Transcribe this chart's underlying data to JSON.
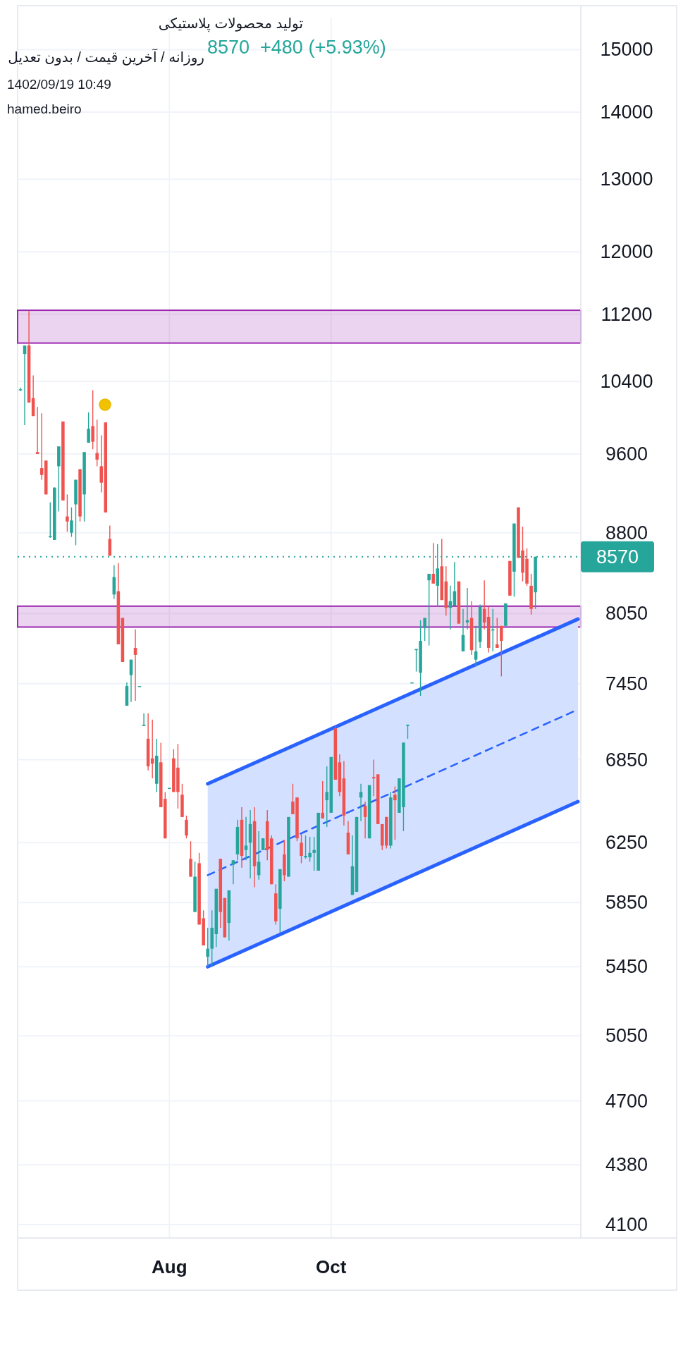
{
  "chart_data": {
    "type": "candlestick",
    "title": "تولید محصولات پلاستیکی",
    "subtitle": "روزانه / آخرین قیمت / بدون تعدیل",
    "annotations": [
      "8570  +480 (+5.93%)",
      "1402/09/19 10:49",
      "hamed.beiro"
    ],
    "categories": [
      null,
      null,
      null,
      null,
      null,
      null,
      null,
      null,
      null,
      null,
      null,
      null,
      null,
      null,
      null,
      null,
      null,
      null,
      null,
      null,
      null,
      null,
      null,
      null,
      null,
      null,
      null,
      null,
      null,
      null,
      null,
      null,
      null,
      null,
      null,
      "Aug",
      null,
      null,
      null,
      null,
      null,
      null,
      null,
      null,
      null,
      null,
      null,
      null,
      null,
      null,
      null,
      null,
      null,
      null,
      null,
      null,
      null,
      null,
      null,
      null,
      null,
      null,
      null,
      null,
      null,
      null,
      null,
      null,
      null,
      null,
      null,
      null,
      null,
      "Oct",
      null,
      null,
      null,
      null,
      null,
      null,
      null,
      null,
      null,
      null,
      null,
      null,
      null,
      null,
      null,
      null,
      null,
      null,
      null,
      null,
      null,
      null,
      null,
      null,
      null,
      null,
      null,
      null,
      null,
      null,
      null,
      null,
      null,
      null,
      null,
      null,
      null,
      null,
      null,
      null,
      null,
      null,
      null,
      null,
      null,
      null,
      null,
      null,
      null,
      null,
      null,
      null,
      null,
      null,
      null,
      null,
      null,
      null
    ],
    "ohlc": [
      [
        10310,
        10330,
        10290,
        10310
      ],
      [
        10720,
        10820,
        9910,
        10820
      ],
      [
        10820,
        11240,
        10160,
        10160
      ],
      [
        10210,
        10470,
        10010,
        10010
      ],
      [
        9620,
        10110,
        9600,
        9600
      ],
      [
        9450,
        10040,
        9330,
        9380
      ],
      [
        9530,
        9530,
        9180,
        9180
      ],
      [
        8760,
        9100,
        8750,
        8770
      ],
      [
        8730,
        9250,
        8730,
        9250
      ],
      [
        9470,
        9680,
        9010,
        9680
      ],
      [
        9950,
        9950,
        9120,
        9120
      ],
      [
        8960,
        9180,
        8810,
        8910
      ],
      [
        8800,
        9050,
        8760,
        8920
      ],
      [
        9080,
        9330,
        8680,
        9330
      ],
      [
        9440,
        9440,
        8910,
        8960
      ],
      [
        9180,
        9620,
        8910,
        9620
      ],
      [
        9720,
        10050,
        9720,
        9870
      ],
      [
        9900,
        10300,
        9650,
        9730
      ],
      [
        9610,
        9970,
        9470,
        9540
      ],
      [
        9470,
        9800,
        9200,
        9300
      ],
      [
        9940,
        9940,
        9000,
        9000
      ],
      [
        8740,
        8870,
        8580,
        8580
      ],
      [
        8220,
        8490,
        8180,
        8380
      ],
      [
        8250,
        8510,
        7780,
        7780
      ],
      [
        8010,
        8010,
        7630,
        7630
      ],
      [
        7270,
        7460,
        7270,
        7430
      ],
      [
        7520,
        7650,
        7300,
        7650
      ],
      [
        7750,
        7910,
        7310,
        7690
      ],
      [
        7430,
        7430,
        7430,
        7430
      ],
      [
        7110,
        7210,
        7110,
        7120
      ],
      [
        7010,
        7210,
        6770,
        6800
      ],
      [
        6860,
        7160,
        6710,
        6820
      ],
      [
        6670,
        7010,
        6610,
        6880
      ],
      [
        6830,
        6980,
        6500,
        6500
      ],
      [
        6560,
        6610,
        6280,
        6280
      ],
      [
        6640,
        6640,
        6640,
        6640
      ],
      [
        6860,
        6930,
        6610,
        6610
      ],
      [
        6790,
        6970,
        6490,
        6610
      ],
      [
        6590,
        6670,
        6430,
        6430
      ],
      [
        6410,
        6440,
        6280,
        6300
      ],
      [
        6140,
        6260,
        6020,
        6020
      ],
      [
        5790,
        6120,
        5790,
        6020
      ],
      [
        6110,
        6180,
        5710,
        5710
      ],
      [
        5750,
        5800,
        5580,
        5580
      ],
      [
        5510,
        5690,
        5450,
        5560
      ],
      [
        5560,
        5800,
        5450,
        5690
      ],
      [
        5650,
        5940,
        5570,
        5940
      ],
      [
        6140,
        6140,
        5690,
        5790
      ],
      [
        5880,
        5880,
        5630,
        5630
      ],
      [
        5720,
        5930,
        5610,
        5930
      ],
      [
        6100,
        6130,
        5970,
        6130
      ],
      [
        6170,
        6410,
        6130,
        6360
      ],
      [
        6410,
        6500,
        6080,
        6160
      ],
      [
        6200,
        6430,
        6130,
        6230
      ],
      [
        6250,
        6480,
        6010,
        6380
      ],
      [
        6400,
        6500,
        5950,
        6090
      ],
      [
        6030,
        6330,
        6000,
        6120
      ],
      [
        6200,
        6280,
        6200,
        6280
      ],
      [
        6400,
        6480,
        6130,
        6200
      ],
      [
        6280,
        6300,
        5970,
        5970
      ],
      [
        5910,
        5970,
        5710,
        5730
      ],
      [
        5810,
        6070,
        5660,
        6070
      ],
      [
        6170,
        6270,
        5990,
        6030
      ],
      [
        6020,
        6430,
        6020,
        6430
      ],
      [
        6540,
        6670,
        6450,
        6450
      ],
      [
        6570,
        6570,
        6260,
        6280
      ],
      [
        6250,
        6310,
        6110,
        6160
      ],
      [
        6150,
        6300,
        6140,
        6160
      ],
      [
        6150,
        6290,
        6120,
        6180
      ],
      [
        6180,
        6290,
        6060,
        6200
      ],
      [
        6060,
        6460,
        6060,
        6460
      ],
      [
        6460,
        6690,
        6420,
        6420
      ],
      [
        6550,
        6800,
        6360,
        6610
      ],
      [
        6460,
        6870,
        6460,
        6870
      ],
      [
        7090,
        7120,
        6700,
        6700
      ],
      [
        6830,
        6890,
        6580,
        6610
      ],
      [
        6710,
        6840,
        6370,
        6440
      ],
      [
        6320,
        6400,
        6170,
        6170
      ],
      [
        5900,
        6300,
        5900,
        6090
      ],
      [
        5920,
        6430,
        5920,
        6430
      ],
      [
        6570,
        6670,
        6400,
        6610
      ],
      [
        6510,
        6540,
        6280,
        6430
      ],
      [
        6280,
        6660,
        6280,
        6660
      ],
      [
        6720,
        6850,
        6580,
        6710
      ],
      [
        6740,
        6740,
        6380,
        6380
      ],
      [
        6380,
        6380,
        6200,
        6230
      ],
      [
        6430,
        6430,
        6210,
        6230
      ],
      [
        6230,
        6610,
        6210,
        6570
      ],
      [
        6590,
        6650,
        6270,
        6550
      ],
      [
        6460,
        6710,
        6460,
        6710
      ],
      [
        6500,
        6980,
        6330,
        6980
      ],
      [
        7110,
        7120,
        7010,
        7120
      ],
      [
        7460,
        7460,
        7460,
        7460
      ],
      [
        7730,
        7740,
        7550,
        7740
      ],
      [
        7540,
        7990,
        7350,
        7810
      ],
      [
        7920,
        8010,
        7810,
        8010
      ],
      [
        8350,
        8410,
        7770,
        8410
      ],
      [
        8410,
        8700,
        8320,
        8320
      ],
      [
        8300,
        8690,
        8110,
        8460
      ],
      [
        8480,
        8740,
        8170,
        8170
      ],
      [
        8340,
        8480,
        8030,
        8100
      ],
      [
        8100,
        8300,
        7910,
        8160
      ],
      [
        8120,
        8520,
        8120,
        8250
      ],
      [
        8340,
        8340,
        7960,
        7960
      ],
      [
        7720,
        8090,
        7720,
        7860
      ],
      [
        7970,
        8280,
        7910,
        7990
      ],
      [
        8010,
        8160,
        7690,
        7730
      ],
      [
        7650,
        7940,
        7590,
        7720
      ],
      [
        7800,
        8130,
        7750,
        8110
      ],
      [
        8090,
        8350,
        7910,
        7970
      ],
      [
        8020,
        8110,
        7710,
        7750
      ],
      [
        7900,
        8090,
        7720,
        7910
      ],
      [
        7780,
        8010,
        7750,
        7750
      ],
      [
        7940,
        7940,
        7510,
        7810
      ],
      [
        7940,
        8140,
        7940,
        8140
      ],
      [
        8530,
        8530,
        8210,
        8210
      ],
      [
        8430,
        8890,
        8200,
        8890
      ],
      [
        9050,
        9050,
        8560,
        8560
      ],
      [
        8630,
        8860,
        8340,
        8420
      ],
      [
        8550,
        8650,
        8300,
        8320
      ],
      [
        8300,
        8410,
        8040,
        8090
      ],
      [
        8240,
        8570,
        8090,
        8570
      ],
      null,
      null,
      null,
      null,
      null,
      null,
      null,
      null,
      null,
      null
    ],
    "colors": [
      "#26a69a",
      "#26a69a",
      "#ef5350",
      "#ef5350",
      "#ef5350",
      "#ef5350",
      "#ef5350",
      "#26a69a",
      "#26a69a",
      "#26a69a",
      "#ef5350",
      "#ef5350",
      "#26a69a",
      "#26a69a",
      "#ef5350",
      "#26a69a",
      "#26a69a",
      "#ef5350",
      "#ef5350",
      "#ef5350",
      "#ef5350",
      "#ef5350",
      "#26a69a",
      "#ef5350",
      "#ef5350",
      "#26a69a",
      "#26a69a",
      "#ef5350",
      "#26a69a",
      "#26a69a",
      "#ef5350",
      "#ef5350",
      "#26a69a",
      "#ef5350",
      "#ef5350",
      "#26a69a",
      "#ef5350",
      "#ef5350",
      "#ef5350",
      "#ef5350",
      "#ef5350",
      "#26a69a",
      "#ef5350",
      "#ef5350",
      "#26a69a",
      "#26a69a",
      "#26a69a",
      "#ef5350",
      "#ef5350",
      "#26a69a",
      "#26a69a",
      "#26a69a",
      "#ef5350",
      "#26a69a",
      "#26a69a",
      "#ef5350",
      "#26a69a",
      "#26a69a",
      "#ef5350",
      "#ef5350",
      "#ef5350",
      "#26a69a",
      "#ef5350",
      "#26a69a",
      "#ef5350",
      "#ef5350",
      "#ef5350",
      "#26a69a",
      "#26a69a",
      "#26a69a",
      "#26a69a",
      "#ef5350",
      "#26a69a",
      "#26a69a",
      "#ef5350",
      "#ef5350",
      "#ef5350",
      "#ef5350",
      "#26a69a",
      "#26a69a",
      "#26a69a",
      "#ef5350",
      "#26a69a",
      "#ef5350",
      "#ef5350",
      "#ef5350",
      "#ef5350",
      "#26a69a",
      "#ef5350",
      "#26a69a",
      "#26a69a",
      "#26a69a",
      "#26a69a",
      "#26a69a",
      "#26a69a",
      "#26a69a",
      "#26a69a",
      "#ef5350",
      "#26a69a",
      "#ef5350",
      "#ef5350",
      "#26a69a",
      "#26a69a",
      "#ef5350",
      "#26a69a",
      "#26a69a",
      "#ef5350",
      "#26a69a",
      "#26a69a",
      "#ef5350",
      "#ef5350",
      "#26a69a",
      "#ef5350",
      "#ef5350",
      "#26a69a",
      "#ef5350",
      "#26a69a",
      "#ef5350",
      "#ef5350",
      "#ef5350",
      "#ef5350",
      "#26a69a",
      null,
      null,
      null,
      null,
      null,
      null,
      null,
      null,
      null,
      null
    ],
    "series": [
      {
        "type": "line",
        "color": "#2962ff",
        "line_style": "solid",
        "values": [
          null,
          null,
          null,
          null,
          null,
          null,
          null,
          null,
          null,
          null,
          null,
          null,
          null,
          null,
          null,
          null,
          null,
          null,
          null,
          null,
          null,
          null,
          null,
          null,
          null,
          null,
          null,
          null,
          null,
          null,
          null,
          null,
          null,
          null,
          null,
          null,
          null,
          null,
          null,
          null,
          null,
          null,
          null,
          null,
          6670,
          null,
          null,
          null,
          null,
          null,
          null,
          null,
          null,
          null,
          null,
          null,
          null,
          null,
          null,
          null,
          null,
          null,
          null,
          null,
          null,
          null,
          null,
          null,
          null,
          null,
          null,
          null,
          null,
          null,
          null,
          null,
          null,
          null,
          null,
          null,
          null,
          null,
          null,
          null,
          null,
          null,
          null,
          null,
          null,
          null,
          null,
          null,
          null,
          null,
          null,
          null,
          null,
          null,
          null,
          null,
          null,
          null,
          null,
          null,
          null,
          null,
          null,
          null,
          null,
          null,
          null,
          null,
          null,
          null,
          null,
          null,
          null,
          null,
          null,
          null,
          null,
          null,
          null,
          null,
          null,
          null,
          null,
          null,
          null,
          null,
          null,
          8000
        ]
      },
      {
        "type": "line",
        "color": "#2962ff",
        "line_style": "solid",
        "values": [
          null,
          null,
          null,
          null,
          null,
          null,
          null,
          null,
          null,
          null,
          null,
          null,
          null,
          null,
          null,
          null,
          null,
          null,
          null,
          null,
          null,
          null,
          null,
          null,
          null,
          null,
          null,
          null,
          null,
          null,
          null,
          null,
          null,
          null,
          null,
          null,
          null,
          null,
          null,
          null,
          null,
          null,
          null,
          null,
          5450,
          null,
          null,
          null,
          null,
          null,
          null,
          null,
          null,
          null,
          null,
          null,
          null,
          null,
          null,
          null,
          null,
          null,
          null,
          null,
          null,
          null,
          null,
          null,
          null,
          null,
          null,
          null,
          null,
          null,
          null,
          null,
          null,
          null,
          null,
          null,
          null,
          null,
          null,
          null,
          null,
          null,
          null,
          null,
          null,
          null,
          null,
          null,
          null,
          null,
          null,
          null,
          null,
          null,
          null,
          null,
          null,
          null,
          null,
          null,
          null,
          null,
          null,
          null,
          null,
          null,
          null,
          null,
          null,
          null,
          null,
          null,
          null,
          null,
          null,
          null,
          null,
          null,
          null,
          null,
          null,
          null,
          null,
          null,
          null,
          null,
          null,
          6540
        ]
      },
      {
        "type": "line",
        "color": "#2962ff",
        "line_style": "dashed",
        "values": [
          null,
          null,
          null,
          null,
          null,
          null,
          null,
          null,
          null,
          null,
          null,
          null,
          null,
          null,
          null,
          null,
          null,
          null,
          null,
          null,
          null,
          null,
          null,
          null,
          null,
          null,
          null,
          null,
          null,
          null,
          null,
          null,
          null,
          null,
          null,
          null,
          null,
          null,
          null,
          null,
          null,
          null,
          null,
          null,
          6030,
          null,
          null,
          null,
          null,
          null,
          null,
          null,
          null,
          null,
          null,
          null,
          null,
          null,
          null,
          null,
          null,
          null,
          null,
          null,
          null,
          null,
          null,
          null,
          null,
          null,
          null,
          null,
          null,
          null,
          null,
          null,
          null,
          null,
          null,
          null,
          null,
          null,
          null,
          null,
          null,
          null,
          null,
          null,
          null,
          null,
          null,
          null,
          null,
          null,
          null,
          null,
          null,
          null,
          null,
          null,
          null,
          null,
          null,
          null,
          null,
          null,
          null,
          null,
          null,
          null,
          null,
          null,
          null,
          null,
          null,
          null,
          null,
          null,
          null,
          null,
          null,
          null,
          null,
          null,
          null,
          null,
          null,
          null,
          null,
          null,
          null,
          7240
        ],
        "lower": [
          null,
          null,
          null,
          null,
          null,
          null,
          null,
          null,
          null,
          null,
          null,
          null,
          null,
          null,
          null,
          null,
          null,
          null,
          null,
          null,
          null,
          null,
          null,
          null,
          null,
          null,
          null,
          null,
          null,
          null,
          null,
          null,
          null,
          null,
          null,
          null,
          null,
          null,
          null,
          null,
          null,
          null,
          null,
          null,
          5450,
          null,
          null,
          null,
          null,
          null,
          null,
          null,
          null,
          null,
          null,
          null,
          null,
          null,
          null,
          null,
          null,
          null,
          null,
          null,
          null,
          null,
          null,
          null,
          null,
          null,
          null,
          null,
          null,
          null,
          null,
          null,
          null,
          null,
          null,
          null,
          null,
          null,
          null,
          null,
          null,
          null,
          null,
          null,
          null,
          null,
          null,
          null,
          null,
          null,
          null,
          null,
          null,
          null,
          null,
          null,
          null,
          null,
          null,
          null,
          null,
          null,
          null,
          null,
          null,
          null,
          null,
          null,
          null,
          null,
          null,
          null,
          null,
          null,
          null,
          null,
          null,
          null,
          null,
          null,
          null,
          null,
          null,
          null,
          null,
          null,
          null,
          6540
        ],
        "upper": [
          null,
          null,
          null,
          null,
          null,
          null,
          null,
          null,
          null,
          null,
          null,
          null,
          null,
          null,
          null,
          null,
          null,
          null,
          null,
          null,
          null,
          null,
          null,
          null,
          null,
          null,
          null,
          null,
          null,
          null,
          null,
          null,
          null,
          null,
          null,
          null,
          null,
          null,
          null,
          null,
          null,
          null,
          null,
          null,
          6670,
          null,
          null,
          null,
          null,
          null,
          null,
          null,
          null,
          null,
          null,
          null,
          null,
          null,
          null,
          null,
          null,
          null,
          null,
          null,
          null,
          null,
          null,
          null,
          null,
          null,
          null,
          null,
          null,
          null,
          null,
          null,
          null,
          null,
          null,
          null,
          null,
          null,
          null,
          null,
          null,
          null,
          null,
          null,
          null,
          null,
          null,
          null,
          null,
          null,
          null,
          null,
          null,
          null,
          null,
          null,
          null,
          null,
          null,
          null,
          null,
          null,
          null,
          null,
          null,
          null,
          null,
          null,
          null,
          null,
          null,
          null,
          null,
          null,
          null,
          null,
          null,
          null,
          null,
          null,
          null,
          null,
          null,
          null,
          null,
          null,
          null,
          8000
        ]
      }
    ],
    "bands": [
      {
        "axis": "y",
        "from": 7930,
        "to": 8115,
        "color": "#9c27b0"
      },
      {
        "axis": "y",
        "from": 10850,
        "to": 11250,
        "color": "#9c27b0"
      }
    ],
    "ref_lines": [
      {
        "axis": "y",
        "value": 8570,
        "label": "8570",
        "color": "#26a69a",
        "line_style": "dotted"
      }
    ],
    "log": "y",
    "ylim": [
      4040,
      15540
    ],
    "yticks": [
      4100,
      4380,
      4700,
      5050,
      5450,
      5850,
      6250,
      6850,
      7450,
      8050,
      8800,
      9600,
      10400,
      11200,
      12000,
      13000,
      14000,
      15000
    ],
    "grid": true
  }
}
